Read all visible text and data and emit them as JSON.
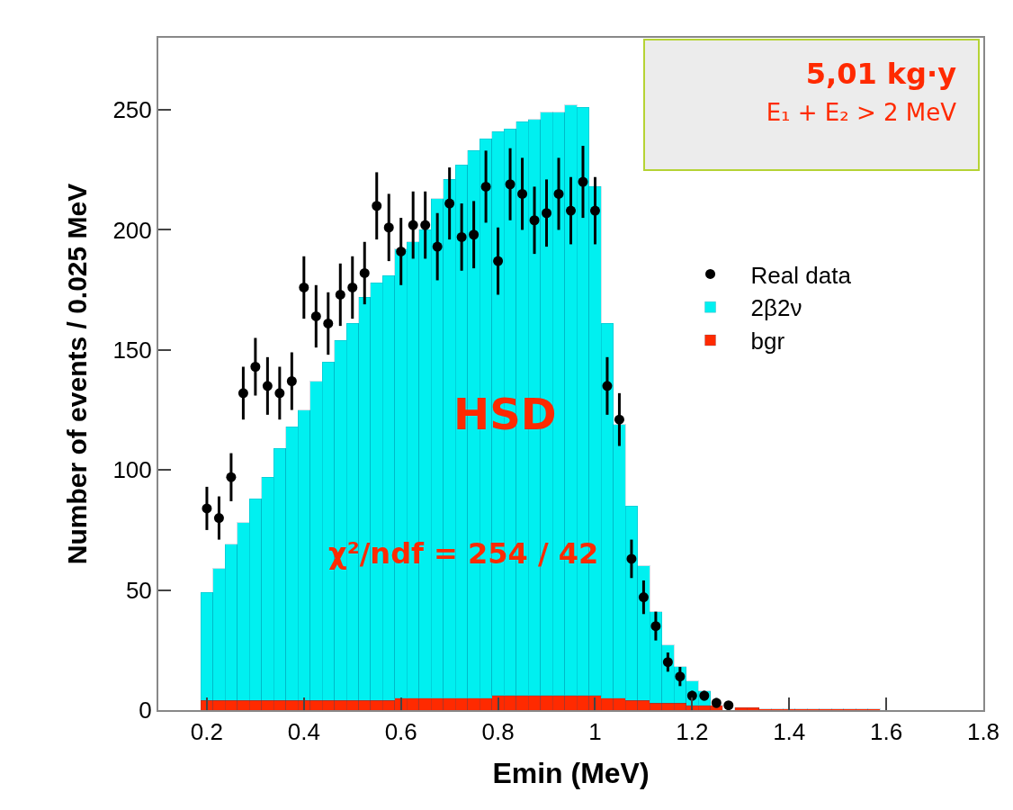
{
  "chart_data": {
    "type": "bar",
    "xlabel": "Emin (MeV)",
    "ylabel": "Number of events / 0.025 MeV",
    "x": [
      0.2,
      0.225,
      0.25,
      0.275,
      0.3,
      0.325,
      0.35,
      0.375,
      0.4,
      0.425,
      0.45,
      0.475,
      0.5,
      0.525,
      0.55,
      0.575,
      0.6,
      0.625,
      0.65,
      0.675,
      0.7,
      0.725,
      0.75,
      0.775,
      0.8,
      0.825,
      0.85,
      0.875,
      0.9,
      0.925,
      0.95,
      0.975,
      1.0,
      1.025,
      1.05,
      1.075,
      1.1,
      1.125,
      1.15,
      1.175,
      1.2,
      1.225,
      1.25,
      1.275,
      1.3,
      1.325,
      1.35,
      1.375,
      1.4,
      1.425,
      1.45,
      1.475,
      1.5,
      1.525,
      1.55,
      1.575
    ],
    "stacked": true,
    "series": [
      {
        "name": "bgr",
        "color": "#ff2a00",
        "values": [
          4,
          4,
          4,
          4,
          4,
          4,
          4,
          4,
          4,
          4,
          4,
          4,
          4,
          4,
          4,
          4,
          5,
          5,
          5,
          5,
          5,
          5,
          5,
          5,
          6,
          6,
          6,
          6,
          6,
          6,
          6,
          6,
          6,
          5,
          5,
          4,
          4,
          3,
          3,
          3,
          2,
          2,
          2,
          null,
          1,
          1,
          0.5,
          0.5,
          0.5,
          0.5,
          0.5,
          0.5,
          0.5,
          0.5,
          0.5,
          0.5
        ]
      },
      {
        "name": "2β2ν",
        "color": "#00f0f0",
        "values": [
          45,
          55,
          65,
          74,
          84,
          93,
          105,
          114,
          121,
          133,
          141,
          150,
          157,
          168,
          174,
          177,
          187,
          190,
          195,
          208,
          216,
          222,
          228,
          233,
          235,
          236,
          239,
          240,
          243,
          243,
          246,
          245,
          212,
          156,
          114,
          81,
          56,
          38,
          24,
          15,
          10,
          6,
          null,
          null,
          0,
          0,
          0,
          0,
          0,
          0,
          0,
          0,
          0,
          0,
          0,
          0
        ]
      },
      {
        "name": "Real data",
        "type": "scatter",
        "color": "#000000",
        "x": [
          0.2,
          0.225,
          0.25,
          0.275,
          0.3,
          0.325,
          0.35,
          0.375,
          0.4,
          0.425,
          0.45,
          0.475,
          0.5,
          0.525,
          0.55,
          0.575,
          0.6,
          0.625,
          0.65,
          0.675,
          0.7,
          0.725,
          0.75,
          0.775,
          0.8,
          0.825,
          0.85,
          0.875,
          0.9,
          0.925,
          0.95,
          0.975,
          1.0,
          1.025,
          1.05,
          1.075,
          1.1,
          1.125,
          1.15,
          1.175,
          1.2,
          1.225,
          1.25,
          1.275
        ],
        "values": [
          84,
          80,
          97,
          132,
          143,
          135,
          132,
          137,
          176,
          164,
          161,
          173,
          176,
          182,
          210,
          201,
          191,
          202,
          202,
          193,
          211,
          197,
          198,
          218,
          187,
          219,
          215,
          204,
          207,
          215,
          208,
          220,
          208,
          135,
          121,
          63,
          47,
          35,
          20,
          14,
          6,
          6,
          3,
          2
        ],
        "errors": [
          9,
          9,
          10,
          11,
          12,
          12,
          11,
          12,
          13,
          13,
          13,
          13,
          13,
          13,
          14,
          14,
          14,
          14,
          14,
          14,
          15,
          14,
          14,
          15,
          14,
          15,
          15,
          14,
          14,
          15,
          14,
          15,
          14,
          12,
          11,
          8,
          7,
          6,
          4,
          4,
          2,
          2,
          2,
          1
        ]
      }
    ],
    "marker": "circle",
    "xlim": [
      0.1,
      1.8
    ],
    "xticks": [
      0.2,
      0.4,
      0.6,
      0.8,
      1,
      1.2,
      1.4,
      1.6,
      1.8
    ],
    "ylim": [
      0,
      280
    ],
    "yticks": [
      0,
      50,
      100,
      150,
      200,
      250
    ],
    "grid": false,
    "legend": "right",
    "annotations": [
      "5,01 kg·y",
      "E₁ + E₂ > 2 MeV",
      "HSD",
      "χ²/ndf = 254 / 42"
    ]
  }
}
